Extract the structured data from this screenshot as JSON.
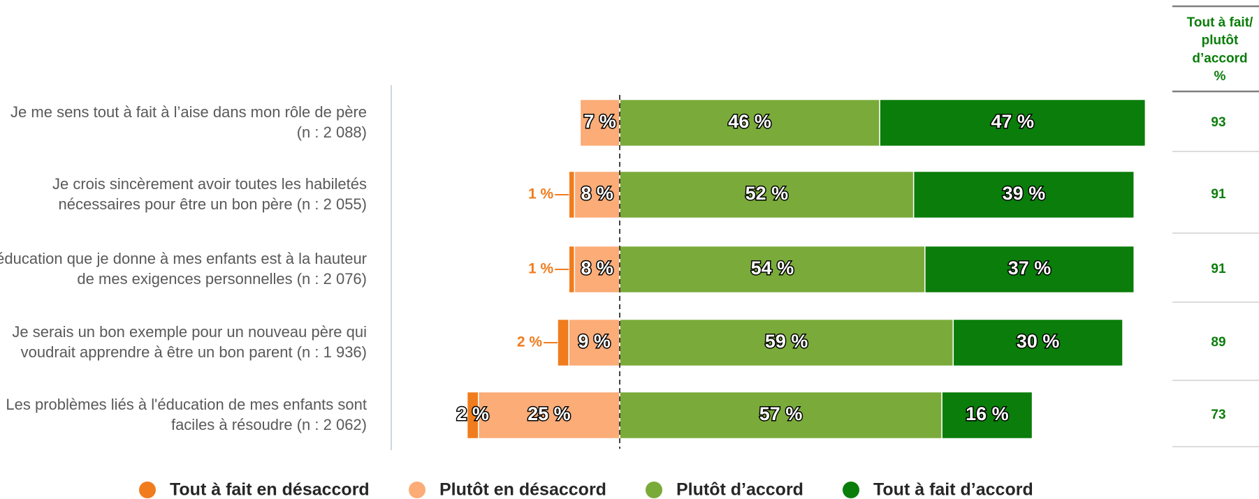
{
  "chart_data": {
    "type": "bar",
    "categories": [
      [
        "Je me sens tout à fait à l’aise dans mon rôle de père",
        "(n : 2 088)"
      ],
      [
        "Je crois sincèrement avoir toutes les habiletés",
        "nécessaires pour être un bon père (n : 2 055)"
      ],
      [
        "L’éducation que je donne à mes enfants est à la hauteur",
        "de mes exigences personnelles (n : 2 076)"
      ],
      [
        "Je serais un bon exemple pour un nouveau père qui",
        "voudrait apprendre à être un bon parent (n : 1 936)"
      ],
      [
        "Les problèmes liés à l'éducation de mes enfants sont",
        "faciles à résoudre (n : 2 062)"
      ]
    ],
    "series": [
      {
        "name": "Tout à fait en désaccord",
        "color": "#f07c1e",
        "values": [
          null,
          1,
          1,
          2,
          2
        ],
        "value_labels": [
          null,
          "1 %",
          "1 %",
          "2 %",
          "2 %"
        ]
      },
      {
        "name": "Plutôt en désaccord",
        "color": "#fbac77",
        "values": [
          7,
          8,
          8,
          9,
          25
        ],
        "value_labels": [
          "7 %",
          "8 %",
          "8 %",
          "9 %",
          "25 %"
        ]
      },
      {
        "name": "Plutôt d’accord",
        "color": "#7aab3a",
        "values": [
          46,
          52,
          54,
          59,
          57
        ],
        "value_labels": [
          "46 %",
          "52 %",
          "54 %",
          "59 %",
          "57 %"
        ]
      },
      {
        "name": "Tout à fait d’accord",
        "color": "#0a7d0a",
        "values": [
          47,
          39,
          37,
          30,
          16
        ],
        "value_labels": [
          "47 %",
          "39 %",
          "37 %",
          "30 %",
          "16 %"
        ]
      }
    ],
    "net_agree": {
      "header": [
        "Tout à fait/",
        "plutôt",
        "d’accord",
        "%"
      ],
      "values": [
        93,
        91,
        91,
        89,
        73
      ]
    }
  }
}
